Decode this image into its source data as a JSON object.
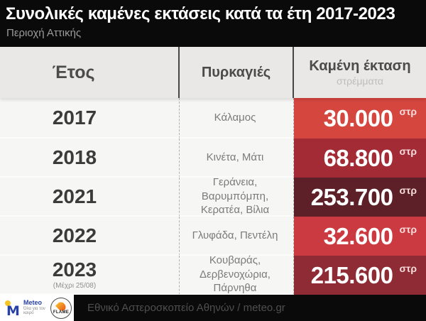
{
  "title_bar": {
    "title": "Συνολικές καμένες εκτάσεις κατά τα έτη 2017-2023",
    "subtitle": "Περιοχή Αττικής"
  },
  "table": {
    "headers": {
      "year": "Έτος",
      "fires": "Πυρκαγιές",
      "area": "Καμένη έκταση",
      "area_unit": "στρέμματα"
    },
    "unit_abbr": "στρ",
    "rows": [
      {
        "year": "2017",
        "note": "",
        "fires": "Κάλαμος",
        "area": "30.000",
        "color": "#d5463f"
      },
      {
        "year": "2018",
        "note": "",
        "fires": "Κινέτα, Μάτι",
        "area": "68.800",
        "color": "#a32b35"
      },
      {
        "year": "2021",
        "note": "",
        "fires": "Γεράνεια, Βαρυμπόμπη, Κερατέα, Βίλια",
        "area": "253.700",
        "color": "#5d1f28"
      },
      {
        "year": "2022",
        "note": "",
        "fires": "Γλυφάδα, Πεντέλη",
        "area": "32.600",
        "color": "#cc3a41"
      },
      {
        "year": "2023",
        "note": "(Μέχρι 25/08)",
        "fires": "Κουβαράς, Δερβενοχώρια, Πάρνηθα",
        "area": "215.600",
        "color": "#8e2b34"
      }
    ]
  },
  "footer": {
    "logos": {
      "meteo_mark": "M",
      "meteo_name": "Meteo",
      "meteo_tagline": "Όλα για τον καιρό",
      "flame_name": "FLAME"
    },
    "credit": "Εθνικό Αστεροσκοπείο Αθηνών / meteo.gr"
  },
  "chart_data": {
    "type": "table",
    "title": "Συνολικές καμένες εκτάσεις κατά τα έτη 2017-2023",
    "subtitle": "Περιοχή Αττικής",
    "columns": [
      "Έτος",
      "Πυρκαγιές",
      "Καμένη έκταση (στρέμματα)"
    ],
    "categories": [
      "2017",
      "2018",
      "2021",
      "2022",
      "2023"
    ],
    "values": [
      30000,
      68800,
      253700,
      32600,
      215600
    ],
    "fires_per_year": {
      "2017": "Κάλαμος",
      "2018": "Κινέτα, Μάτι",
      "2021": "Γεράνεια, Βαρυμπόμπη, Κερατέα, Βίλια",
      "2022": "Γλυφάδα, Πεντέλη",
      "2023": "Κουβαράς, Δερβενοχώρια, Πάρνηθα"
    },
    "notes": {
      "2023": "Μέχρι 25/08"
    },
    "unit": "στρέμματα",
    "source": "Εθνικό Αστεροσκοπείο Αθηνών / meteo.gr",
    "legend_position": "none",
    "cell_colors": [
      "#d5463f",
      "#a32b35",
      "#5d1f28",
      "#cc3a41",
      "#8e2b34"
    ]
  }
}
